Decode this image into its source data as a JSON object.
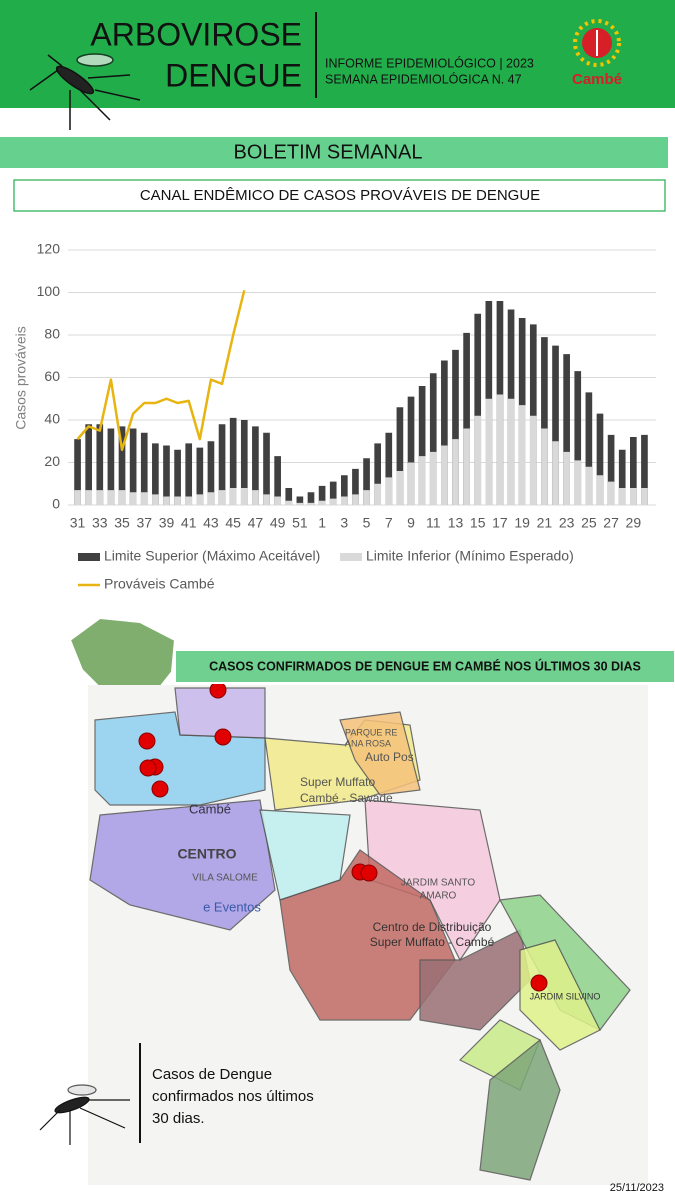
{
  "header": {
    "title_lines": [
      "ARBOVIROSE",
      "DENGUE"
    ],
    "info_lines": [
      "INFORME EPIDEMIOLÓGICO | 2023",
      "SEMANA EPIDEMIOLÓGICA  N. 47"
    ],
    "logo_text": "Cambé"
  },
  "banner": "BOLETIM SEMANAL",
  "chart_data": {
    "type": "bar-line",
    "title": "CANAL ENDÊMICO DE CASOS PROVÁVEIS DE DENGUE",
    "y_label": "Casos prováveis",
    "categories": [
      "31",
      null,
      "33",
      null,
      "35",
      null,
      "37",
      null,
      "39",
      null,
      "41",
      null,
      "43",
      null,
      "45",
      null,
      "47",
      null,
      "49",
      null,
      "51",
      null,
      "1",
      null,
      "3",
      null,
      "5",
      null,
      "7",
      null,
      "9",
      null,
      "11",
      null,
      "13",
      null,
      "15",
      null,
      "17",
      null,
      "19",
      null,
      "21",
      null,
      "23",
      null,
      "25",
      null,
      "27",
      null,
      "29",
      null
    ],
    "series": [
      {
        "name": "Limite Superior (Máximo Aceitável)",
        "color": "#404040",
        "kind": "bar",
        "values": [
          31,
          38,
          38,
          36,
          37,
          36,
          34,
          29,
          28,
          26,
          29,
          27,
          30,
          38,
          41,
          40,
          37,
          34,
          23,
          8,
          4,
          6,
          9,
          11,
          14,
          17,
          22,
          29,
          34,
          46,
          51,
          56,
          62,
          68,
          73,
          81,
          90,
          96,
          96,
          92,
          88,
          85,
          79,
          75,
          71,
          63,
          53,
          43,
          33,
          26,
          32,
          33
        ]
      },
      {
        "name": "Limite Inferior (Mínimo Esperado)",
        "color": "#d9d9d9",
        "kind": "bar",
        "values": [
          7,
          7,
          7,
          7,
          7,
          6,
          6,
          5,
          4,
          4,
          4,
          5,
          6,
          7,
          8,
          8,
          7,
          5,
          4,
          2,
          1,
          1,
          2,
          3,
          4,
          5,
          7,
          10,
          13,
          16,
          20,
          23,
          25,
          28,
          31,
          36,
          42,
          50,
          52,
          50,
          47,
          42,
          36,
          30,
          25,
          21,
          18,
          14,
          11,
          8,
          8,
          8
        ]
      },
      {
        "name": "Prováveis Cambé",
        "color": "#e8b410",
        "kind": "line",
        "values": [
          31,
          37,
          35,
          59,
          26,
          43,
          48,
          48,
          50,
          48,
          49,
          31,
          59,
          57,
          80,
          101,
          null,
          null,
          null,
          null,
          null,
          null,
          null,
          null,
          null,
          null,
          null,
          null,
          null,
          null,
          null,
          null,
          null,
          null,
          null,
          null,
          null,
          null,
          null,
          null,
          null,
          null,
          null,
          null,
          null,
          null,
          null,
          null,
          null,
          null,
          null,
          null
        ]
      }
    ],
    "ylim": [
      0,
      120
    ],
    "yticks": [
      0,
      20,
      40,
      60,
      80,
      100,
      120
    ],
    "grid": true
  },
  "map": {
    "title": "CASOS CONFIRMADOS DE DENGUE EM CAMBÉ NOS ÚLTIMOS 30 DIAS",
    "labels": [
      "Cambé",
      "CENTRO",
      "VILA SALOME",
      "e Eventos",
      "Super Muffato",
      "Cambé - Sawade",
      "PARQUE RE",
      "ANA ROSA",
      "Auto Pos",
      "JARDIM SANTO",
      "AMARO",
      "Centro de Distribuição",
      "Super Muffato - Cambé",
      "JARDIM SILVINO"
    ]
  },
  "legend_lines": [
    "Casos de Dengue",
    "confirmados nos últimos",
    "30 dias."
  ],
  "date": "25/11/2023"
}
